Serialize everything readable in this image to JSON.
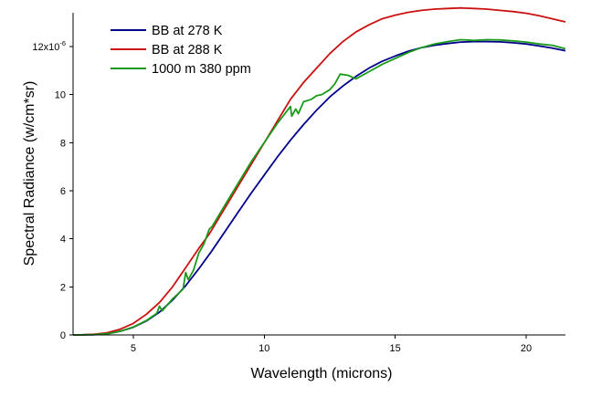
{
  "chart_data": {
    "type": "line",
    "xlabel": "Wavelength (microns)",
    "ylabel": "Spectral Radiance (w/cm*sr)",
    "xlim": [
      2.7,
      21.5
    ],
    "ylim": [
      0,
      13.4
    ],
    "y_scale_note": "x10^-6",
    "x_ticks": [
      5,
      10,
      15,
      20
    ],
    "x_tick_labels": [
      "5",
      "10",
      "15",
      "20"
    ],
    "y_ticks": [
      0,
      2,
      4,
      6,
      8,
      10,
      12
    ],
    "y_tick_labels": [
      "0",
      "2",
      "4",
      "6",
      "8",
      "10",
      "12x10"
    ],
    "y_top_exponent": "-6",
    "legend": {
      "position": "top-left"
    },
    "series": [
      {
        "name": "BB at 278 K",
        "color": "#00008b",
        "points": [
          [
            2.7,
            0
          ],
          [
            3,
            0.002
          ],
          [
            3.5,
            0.01
          ],
          [
            4,
            0.05
          ],
          [
            4.5,
            0.15
          ],
          [
            5,
            0.32
          ],
          [
            5.5,
            0.58
          ],
          [
            6,
            0.95
          ],
          [
            6.5,
            1.45
          ],
          [
            7,
            2.05
          ],
          [
            7.5,
            2.75
          ],
          [
            8,
            3.5
          ],
          [
            8.5,
            4.3
          ],
          [
            9,
            5.1
          ],
          [
            9.5,
            5.9
          ],
          [
            10,
            6.65
          ],
          [
            10.5,
            7.4
          ],
          [
            11,
            8.1
          ],
          [
            11.5,
            8.75
          ],
          [
            12,
            9.35
          ],
          [
            12.5,
            9.9
          ],
          [
            13,
            10.35
          ],
          [
            13.5,
            10.75
          ],
          [
            14,
            11.1
          ],
          [
            14.5,
            11.38
          ],
          [
            15,
            11.6
          ],
          [
            15.5,
            11.8
          ],
          [
            16,
            11.95
          ],
          [
            16.5,
            12.05
          ],
          [
            17,
            12.12
          ],
          [
            17.5,
            12.18
          ],
          [
            18,
            12.2
          ],
          [
            18.5,
            12.2
          ],
          [
            19,
            12.19
          ],
          [
            19.5,
            12.15
          ],
          [
            20,
            12.1
          ],
          [
            20.5,
            12.02
          ],
          [
            21,
            11.93
          ],
          [
            21.5,
            11.82
          ]
        ]
      },
      {
        "name": "BB at 288 K",
        "color": "#cc1111",
        "points": [
          [
            2.7,
            0
          ],
          [
            3,
            0.004
          ],
          [
            3.5,
            0.025
          ],
          [
            4,
            0.09
          ],
          [
            4.5,
            0.24
          ],
          [
            5,
            0.48
          ],
          [
            5.5,
            0.86
          ],
          [
            6,
            1.35
          ],
          [
            6.5,
            2.0
          ],
          [
            7,
            2.8
          ],
          [
            7.5,
            3.6
          ],
          [
            7.9,
            4.2
          ],
          [
            11,
            9.8
          ],
          [
            11.5,
            10.5
          ],
          [
            12,
            11.1
          ],
          [
            12.5,
            11.7
          ],
          [
            13,
            12.2
          ],
          [
            13.5,
            12.6
          ],
          [
            14,
            12.9
          ],
          [
            14.5,
            13.15
          ],
          [
            15,
            13.3
          ],
          [
            15.5,
            13.42
          ],
          [
            16,
            13.5
          ],
          [
            16.5,
            13.55
          ],
          [
            17,
            13.58
          ],
          [
            17.5,
            13.6
          ],
          [
            18,
            13.58
          ],
          [
            18.5,
            13.55
          ],
          [
            19,
            13.5
          ],
          [
            19.5,
            13.45
          ],
          [
            20,
            13.38
          ],
          [
            20.5,
            13.28
          ],
          [
            21,
            13.15
          ],
          [
            21.5,
            13.02
          ]
        ]
      },
      {
        "name": "1000 m 380 ppm",
        "color": "#1a9a1a",
        "points": [
          [
            2.7,
            0
          ],
          [
            3,
            0.002
          ],
          [
            3.5,
            0.01
          ],
          [
            4,
            0.05
          ],
          [
            4.5,
            0.15
          ],
          [
            5,
            0.33
          ],
          [
            5.5,
            0.6
          ],
          [
            5.9,
            0.9
          ],
          [
            6,
            1.2
          ],
          [
            6.1,
            1.0
          ],
          [
            6.5,
            1.5
          ],
          [
            6.9,
            1.9
          ],
          [
            7,
            2.6
          ],
          [
            7.1,
            2.3
          ],
          [
            7.3,
            2.7
          ],
          [
            7.5,
            3.4
          ],
          [
            7.7,
            3.8
          ],
          [
            7.9,
            4.4
          ],
          [
            8,
            4.5
          ],
          [
            8.5,
            5.4
          ],
          [
            9,
            6.3
          ],
          [
            9.5,
            7.2
          ],
          [
            10,
            8.0
          ],
          [
            10.5,
            8.8
          ],
          [
            11,
            9.5
          ],
          [
            11.05,
            9.1
          ],
          [
            11.2,
            9.4
          ],
          [
            11.3,
            9.2
          ],
          [
            11.5,
            9.7
          ],
          [
            11.8,
            9.8
          ],
          [
            12,
            9.95
          ],
          [
            12.2,
            10.0
          ],
          [
            12.5,
            10.2
          ],
          [
            12.7,
            10.45
          ],
          [
            12.9,
            10.85
          ],
          [
            13.2,
            10.8
          ],
          [
            13.5,
            10.65
          ],
          [
            14,
            10.95
          ],
          [
            14.5,
            11.25
          ],
          [
            15,
            11.5
          ],
          [
            15.5,
            11.75
          ],
          [
            16,
            11.95
          ],
          [
            16.5,
            12.1
          ],
          [
            17,
            12.2
          ],
          [
            17.5,
            12.28
          ],
          [
            18,
            12.25
          ],
          [
            18.5,
            12.28
          ],
          [
            19,
            12.27
          ],
          [
            19.5,
            12.23
          ],
          [
            20,
            12.18
          ],
          [
            20.5,
            12.1
          ],
          [
            21,
            12.05
          ],
          [
            21.5,
            11.9
          ]
        ]
      }
    ]
  }
}
